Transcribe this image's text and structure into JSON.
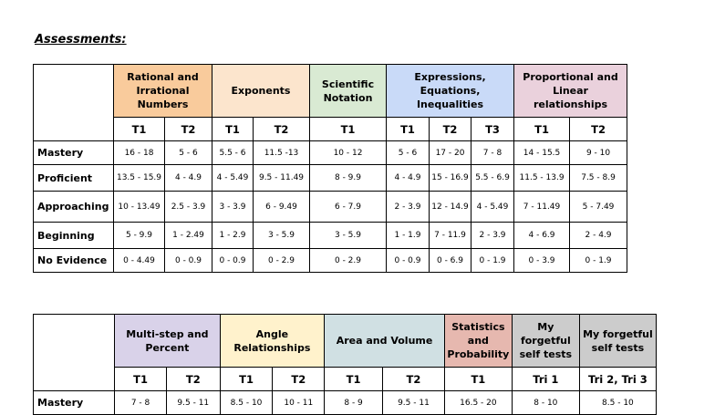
{
  "heading": "Assessments:",
  "colors": {
    "orange": "#f9cb9c",
    "peach": "#fce5cd",
    "green": "#d9ead3",
    "blue": "#c9daf8",
    "pink": "#ead1dc",
    "purple": "#d9d2e9",
    "yellow": "#fff2cc",
    "teal": "#d0e0e3",
    "salmon": "#e6b8af",
    "gray": "#cccccc"
  },
  "table1": {
    "groups": [
      {
        "label": "Rational and Irrational Numbers",
        "span": 2,
        "color": "#f9cb9c"
      },
      {
        "label": "Exponents",
        "span": 2,
        "color": "#fce5cd"
      },
      {
        "label": "Scientific Notation",
        "span": 1,
        "color": "#d9ead3"
      },
      {
        "label": "Expressions, Equations, Inequalities",
        "span": 3,
        "color": "#c9daf8"
      },
      {
        "label": "Proportional and Linear relationships",
        "span": 2,
        "color": "#ead1dc"
      }
    ],
    "subs": [
      "T1",
      "T2",
      "T1",
      "T2",
      "T1",
      "T1",
      "T2",
      "T3",
      "T1",
      "T2"
    ],
    "rows": [
      {
        "label": "Mastery",
        "cells": [
          "16 - 18",
          "5 - 6",
          "5.5 - 6",
          "11.5 -13",
          "10 - 12",
          "5 - 6",
          "17 - 20",
          "7 - 8",
          "14 - 15.5",
          "9 - 10"
        ]
      },
      {
        "label": "Proficient",
        "cells": [
          "13.5 - 15.9",
          "4 - 4.9",
          "4 - 5.49",
          "9.5 - 11.49",
          "8 - 9.9",
          "4 - 4.9",
          "15 - 16.9",
          "5.5 - 6.9",
          "11.5 - 13.9",
          "7.5 - 8.9"
        ]
      },
      {
        "label": "Approaching",
        "cells": [
          "10 - 13.49",
          "2.5 - 3.9",
          "3 - 3.9",
          "6 - 9.49",
          "6 - 7.9",
          "2 - 3.9",
          "12 - 14.9",
          "4 - 5.49",
          "7 - 11.49",
          "5 - 7.49"
        ]
      },
      {
        "label": "Beginning",
        "cells": [
          "5 - 9.9",
          "1 - 2.49",
          "1 - 2.9",
          "3 - 5.9",
          "3 - 5.9",
          "1 - 1.9",
          "7 - 11.9",
          "2 - 3.9",
          "4 - 6.9",
          "2 - 4.9"
        ]
      },
      {
        "label": "No Evidence",
        "cells": [
          "0 - 4.49",
          "0 - 0.9",
          "0 - 0.9",
          "0 - 2.9",
          "0 - 2.9",
          "0 - 0.9",
          "0 - 6.9",
          "0 - 1.9",
          "0 - 3.9",
          "0 - 1.9"
        ]
      }
    ]
  },
  "table2": {
    "groups": [
      {
        "label": "Multi-step and Percent",
        "span": 2,
        "color": "#d9d2e9"
      },
      {
        "label": "Angle Relationships",
        "span": 2,
        "color": "#fff2cc"
      },
      {
        "label": "Area and Volume",
        "span": 2,
        "color": "#d0e0e3"
      },
      {
        "label": "Statistics and Probability",
        "span": 1,
        "color": "#e6b8af"
      },
      {
        "label": "My forgetful self tests",
        "span": 1,
        "color": "#cccccc"
      },
      {
        "label": "My forgetful self tests",
        "span": 1,
        "color": "#cccccc"
      }
    ],
    "subs": [
      "T1",
      "T2",
      "T1",
      "T2",
      "T1",
      "T2",
      "T1",
      "Tri 1",
      "Tri 2, Tri 3"
    ],
    "rows": [
      {
        "label": "Mastery",
        "cells": [
          "7 - 8",
          "9.5 - 11",
          "8.5 - 10",
          "10 - 11",
          "8 - 9",
          "9.5 - 11",
          "16.5 - 20",
          "8 - 10",
          "8.5 - 10"
        ]
      }
    ]
  }
}
